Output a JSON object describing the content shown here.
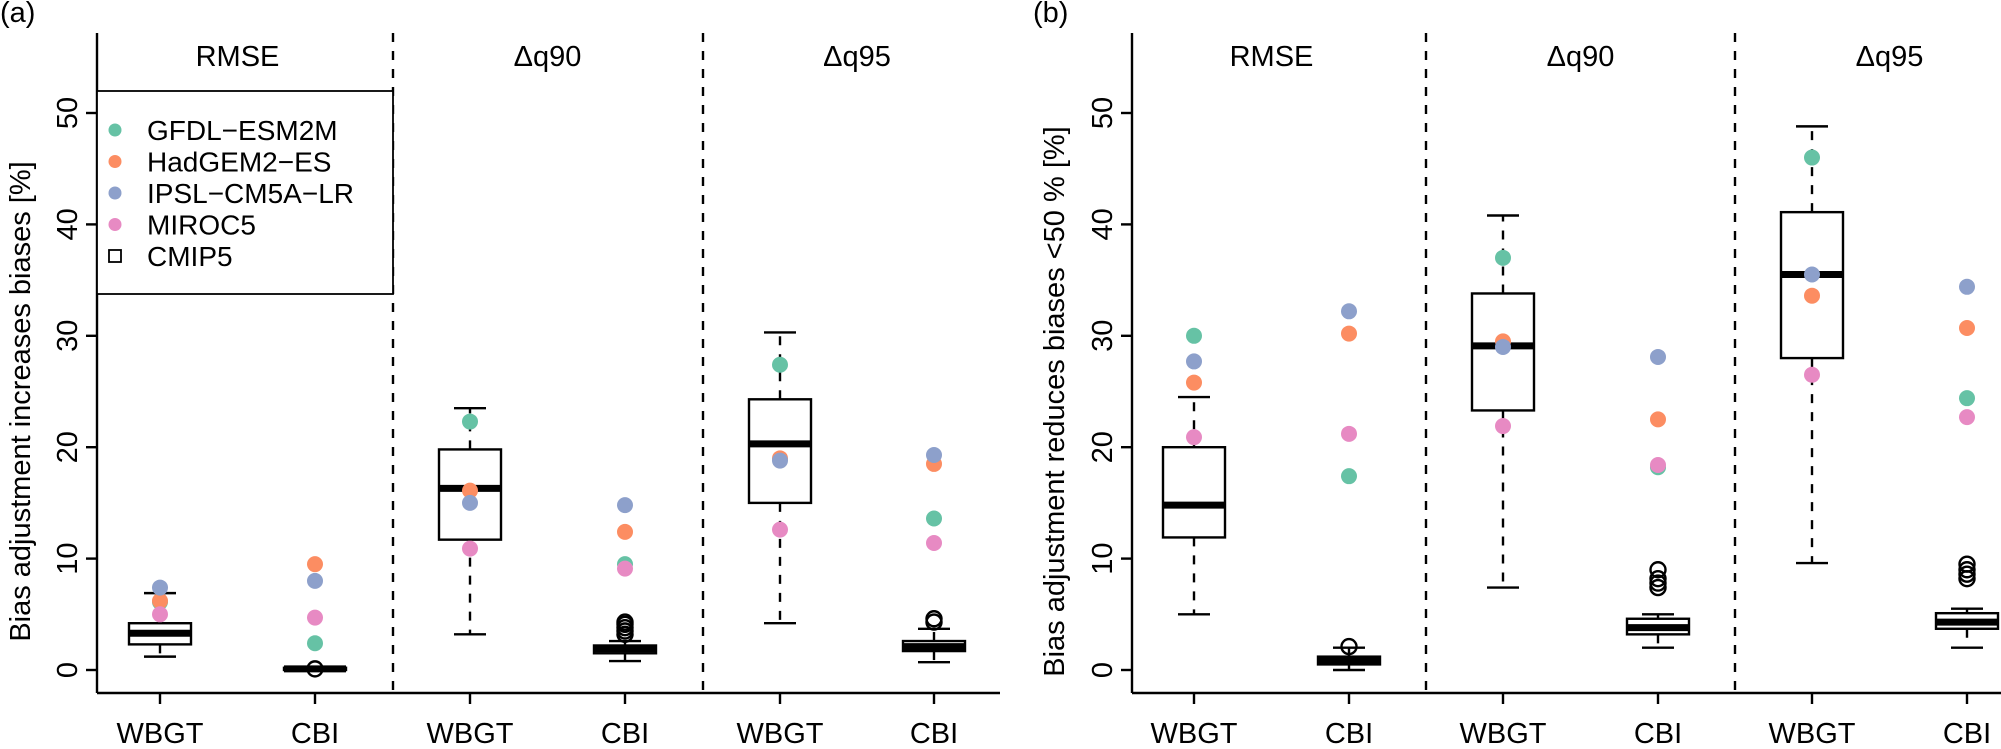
{
  "chart_data": [
    {
      "type": "box",
      "panel_tag": "(a)",
      "ylabel": "Bias adjustment increases biases [%]",
      "ylim": [
        -3,
        56
      ],
      "yticks": [
        0,
        10,
        20,
        30,
        40,
        50
      ],
      "facets": [
        "RMSE",
        "Δq90",
        "Δq95"
      ],
      "categories": [
        "WBGT",
        "CBI"
      ],
      "legend": {
        "placement": "top-left",
        "entries": [
          {
            "label": "GFDL−ESM2M",
            "color": "#66c2a5",
            "marker": "dot"
          },
          {
            "label": "HadGEM2−ES",
            "color": "#fc8d62",
            "marker": "dot"
          },
          {
            "label": "IPSL−CM5A−LR",
            "color": "#8da0cb",
            "marker": "dot"
          },
          {
            "label": "MIROC5",
            "color": "#e78ac3",
            "marker": "dot"
          },
          {
            "label": "CMIP5",
            "color": "#000000",
            "marker": "box"
          }
        ]
      },
      "boxes": [
        {
          "facet": "RMSE",
          "category": "WBGT",
          "q1": 2.3,
          "median": 3.3,
          "q3": 4.2,
          "whisker_low": 1.2,
          "whisker_high": 6.9,
          "outliers": [],
          "models": {
            "GFDL−ESM2M": 6.1,
            "HadGEM2−ES": 6.2,
            "IPSL−CM5A−LR": 7.4,
            "MIROC5": 5.0
          }
        },
        {
          "facet": "RMSE",
          "category": "CBI",
          "q1": 0.0,
          "median": 0.1,
          "q3": 0.2,
          "whisker_low": 0.0,
          "whisker_high": 0.2,
          "outliers": [
            0.1
          ],
          "models": {
            "GFDL−ESM2M": 2.4,
            "HadGEM2−ES": 9.5,
            "IPSL−CM5A−LR": 8.0,
            "MIROC5": 4.7
          }
        },
        {
          "facet": "Δq90",
          "category": "WBGT",
          "q1": 11.7,
          "median": 16.3,
          "q3": 19.8,
          "whisker_low": 3.2,
          "whisker_high": 23.5,
          "outliers": [],
          "models": {
            "GFDL−ESM2M": 22.3,
            "HadGEM2−ES": 16.1,
            "IPSL−CM5A−LR": 15.0,
            "MIROC5": 10.9
          }
        },
        {
          "facet": "Δq90",
          "category": "CBI",
          "q1": 1.5,
          "median": 1.9,
          "q3": 2.2,
          "whisker_low": 0.8,
          "whisker_high": 2.6,
          "outliers": [
            3.2,
            3.5,
            3.8,
            4.1,
            4.3
          ],
          "models": {
            "GFDL−ESM2M": 9.5,
            "HadGEM2−ES": 12.4,
            "IPSL−CM5A−LR": 14.8,
            "MIROC5": 9.1
          }
        },
        {
          "facet": "Δq95",
          "category": "WBGT",
          "q1": 15.0,
          "median": 20.3,
          "q3": 24.3,
          "whisker_low": 4.2,
          "whisker_high": 30.3,
          "outliers": [],
          "models": {
            "GFDL−ESM2M": 27.4,
            "HadGEM2−ES": 19.0,
            "IPSL−CM5A−LR": 18.8,
            "MIROC5": 12.6
          }
        },
        {
          "facet": "Δq95",
          "category": "CBI",
          "q1": 1.7,
          "median": 2.1,
          "q3": 2.6,
          "whisker_low": 0.7,
          "whisker_high": 3.7,
          "outliers": [
            4.3,
            4.6
          ],
          "models": {
            "GFDL−ESM2M": 13.6,
            "HadGEM2−ES": 18.5,
            "IPSL−CM5A−LR": 19.3,
            "MIROC5": 11.4
          }
        }
      ]
    },
    {
      "type": "box",
      "panel_tag": "(b)",
      "ylabel": "Bias adjustment reduces biases <50 % [%]",
      "ylim": [
        -3,
        56
      ],
      "yticks": [
        0,
        10,
        20,
        30,
        40,
        50
      ],
      "facets": [
        "RMSE",
        "Δq90",
        "Δq95"
      ],
      "categories": [
        "WBGT",
        "CBI"
      ],
      "boxes": [
        {
          "facet": "RMSE",
          "category": "WBGT",
          "q1": 11.9,
          "median": 14.8,
          "q3": 20.0,
          "whisker_low": 5.0,
          "whisker_high": 24.5,
          "outliers": [],
          "models": {
            "GFDL−ESM2M": 30.0,
            "HadGEM2−ES": 25.8,
            "IPSL−CM5A−LR": 27.7,
            "MIROC5": 20.9
          }
        },
        {
          "facet": "RMSE",
          "category": "CBI",
          "q1": 0.5,
          "median": 0.9,
          "q3": 1.2,
          "whisker_low": 0.0,
          "whisker_high": 2.0,
          "outliers": [
            2.1
          ],
          "models": {
            "GFDL−ESM2M": 17.4,
            "HadGEM2−ES": 30.2,
            "IPSL−CM5A−LR": 32.2,
            "MIROC5": 21.2
          }
        },
        {
          "facet": "Δq90",
          "category": "WBGT",
          "q1": 23.3,
          "median": 29.1,
          "q3": 33.8,
          "whisker_low": 7.4,
          "whisker_high": 40.8,
          "outliers": [],
          "models": {
            "GFDL−ESM2M": 37.0,
            "HadGEM2−ES": 29.5,
            "IPSL−CM5A−LR": 29.0,
            "MIROC5": 21.9
          }
        },
        {
          "facet": "Δq90",
          "category": "CBI",
          "q1": 3.2,
          "median": 3.8,
          "q3": 4.6,
          "whisker_low": 2.0,
          "whisker_high": 5.0,
          "outliers": [
            7.4,
            7.8,
            8.2,
            9.0
          ],
          "models": {
            "GFDL−ESM2M": 18.2,
            "HadGEM2−ES": 22.5,
            "IPSL−CM5A−LR": 28.1,
            "MIROC5": 18.4
          }
        },
        {
          "facet": "Δq95",
          "category": "WBGT",
          "q1": 28.0,
          "median": 35.5,
          "q3": 41.1,
          "whisker_low": 9.6,
          "whisker_high": 48.8,
          "outliers": [],
          "models": {
            "GFDL−ESM2M": 46.0,
            "HadGEM2−ES": 33.6,
            "IPSL−CM5A−LR": 35.5,
            "MIROC5": 26.5
          }
        },
        {
          "facet": "Δq95",
          "category": "CBI",
          "q1": 3.7,
          "median": 4.3,
          "q3": 5.1,
          "whisker_low": 2.0,
          "whisker_high": 5.5,
          "outliers": [
            8.2,
            8.6,
            9.0,
            9.5
          ],
          "models": {
            "GFDL−ESM2M": 24.4,
            "HadGEM2−ES": 30.7,
            "IPSL−CM5A−LR": 34.4,
            "MIROC5": 22.7
          }
        }
      ]
    }
  ]
}
